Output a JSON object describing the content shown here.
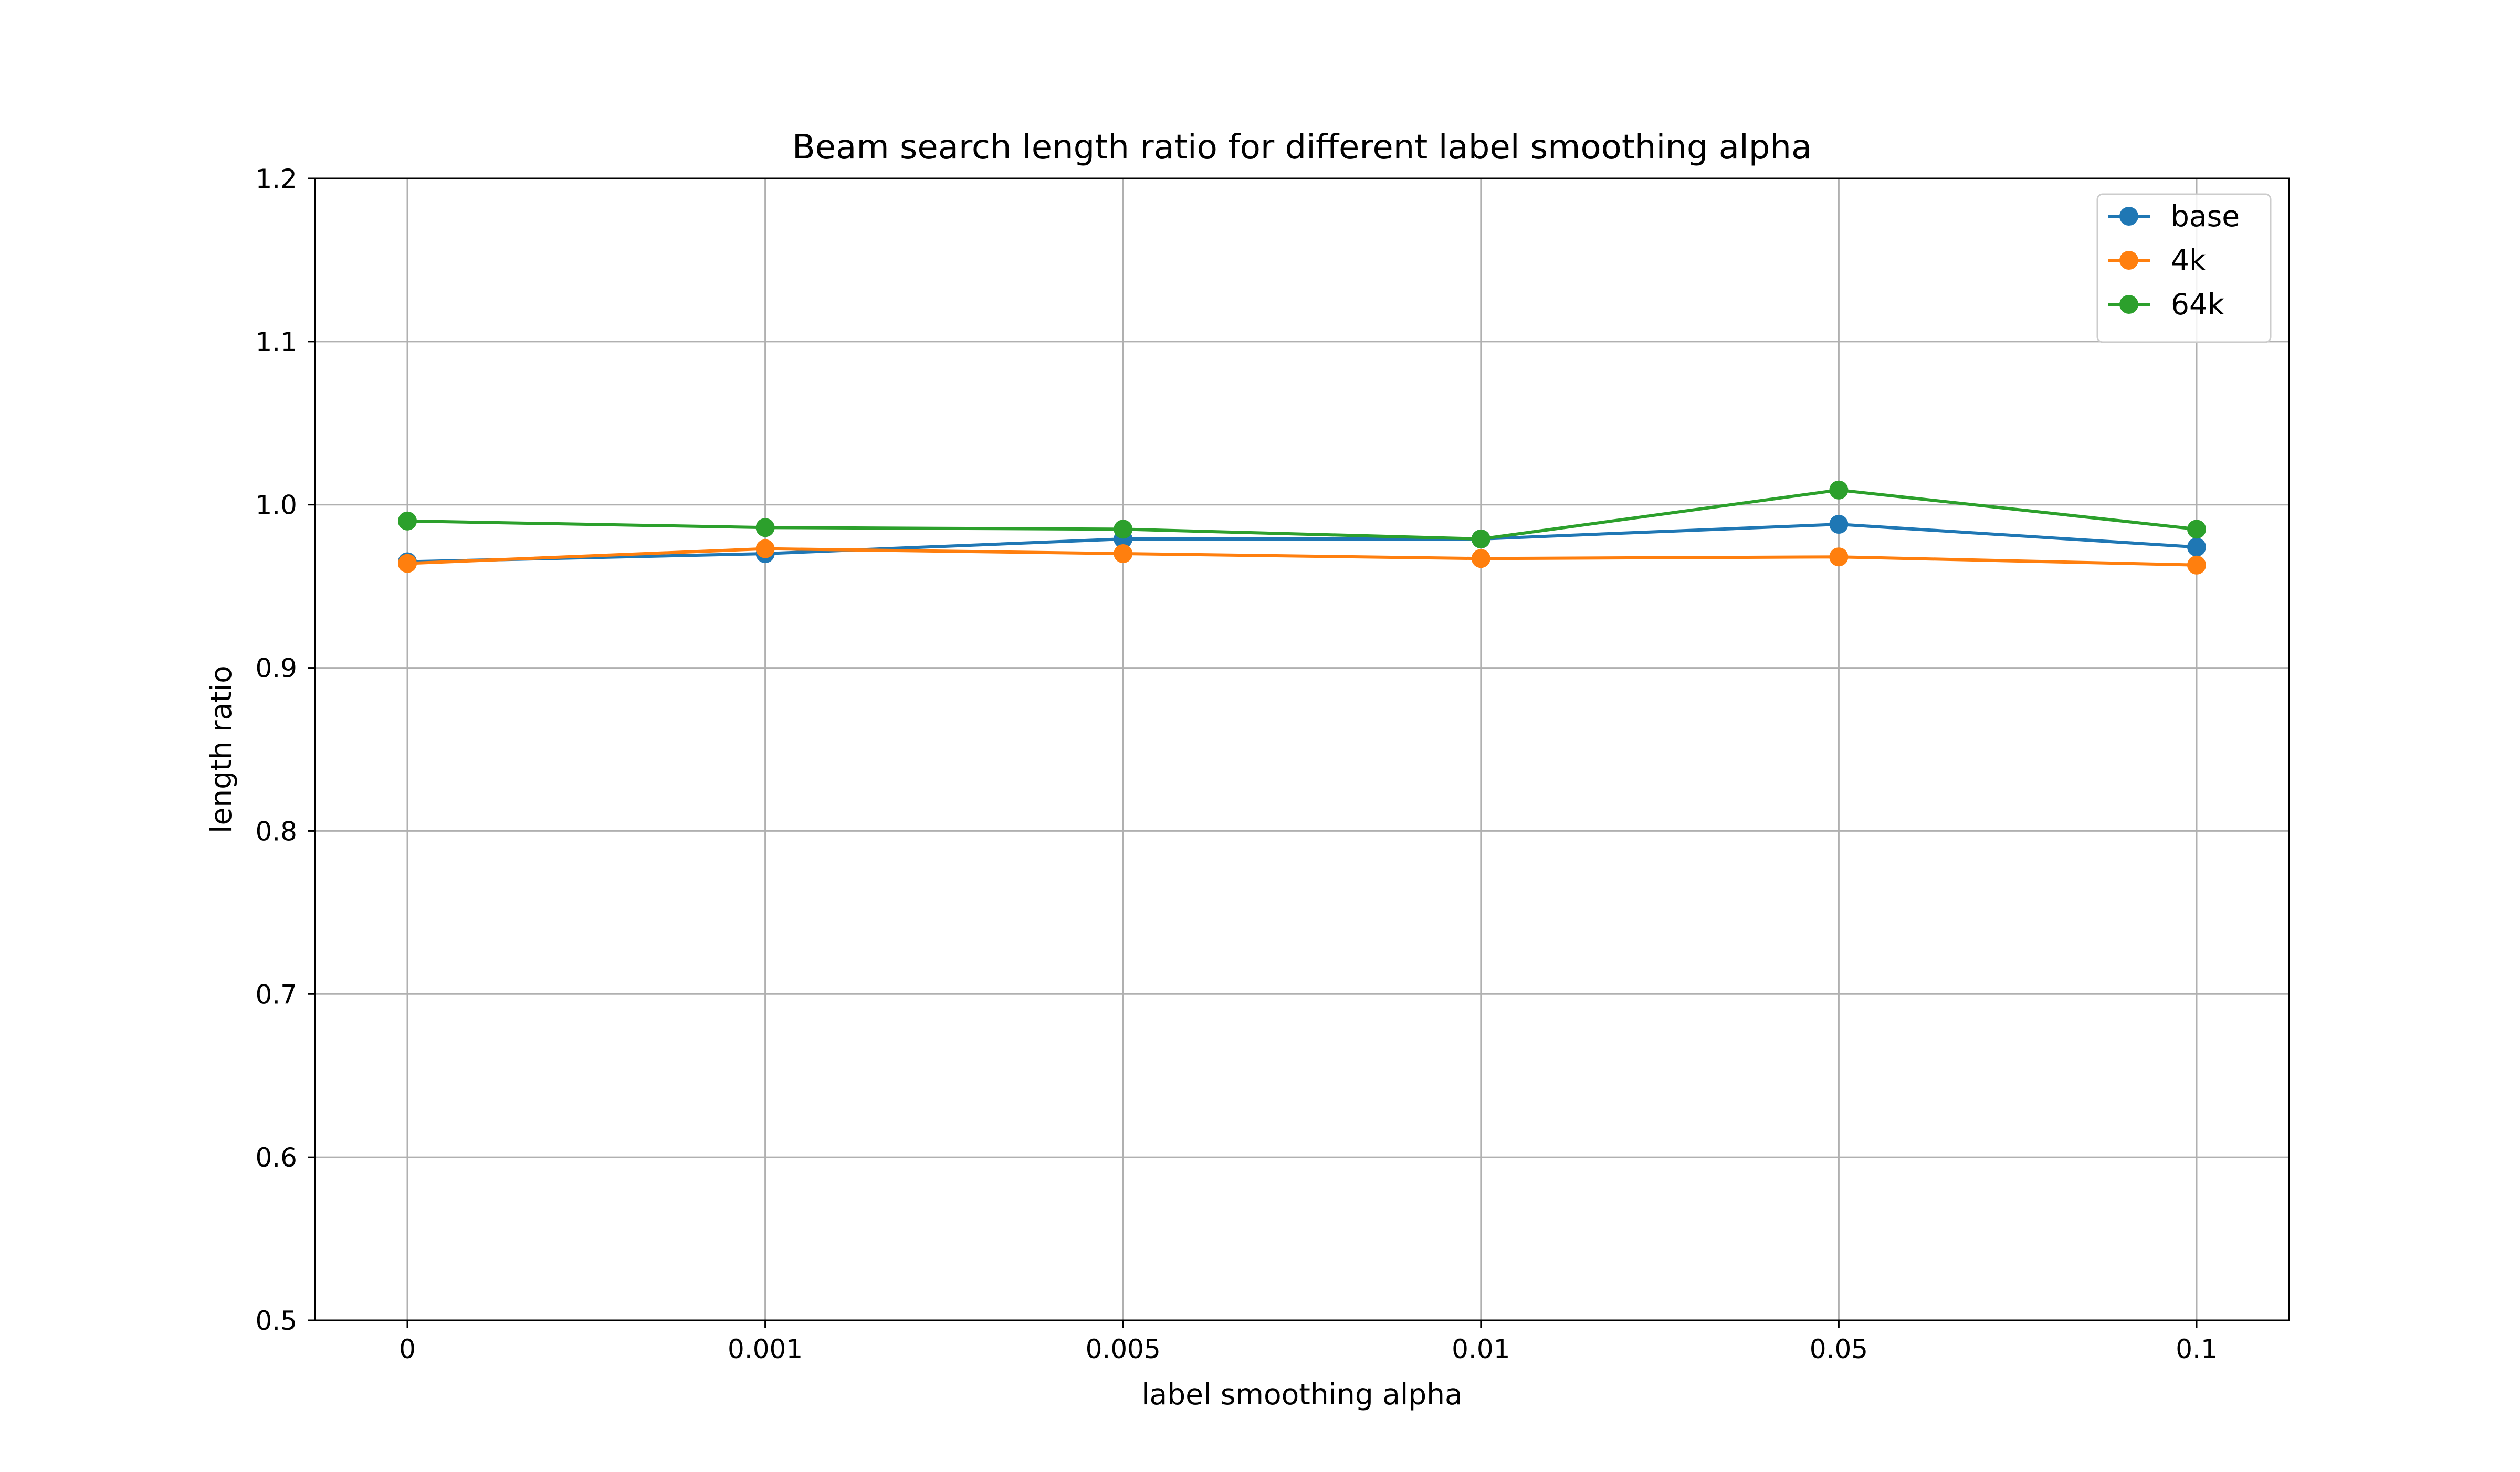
{
  "chart_data": {
    "type": "line",
    "title": "Beam search length ratio for different label smoothing alpha",
    "xlabel": "label smoothing alpha",
    "ylabel": "length ratio",
    "categories": [
      "0",
      "0.001",
      "0.005",
      "0.01",
      "0.05",
      "0.1"
    ],
    "ylim": [
      0.5,
      1.2
    ],
    "yticks": [
      "0.5",
      "0.6",
      "0.7",
      "0.8",
      "0.9",
      "1.0",
      "1.1",
      "1.2"
    ],
    "grid": true,
    "legend_position": "top-right",
    "series": [
      {
        "name": "base",
        "color": "#1f77b4",
        "values": [
          0.965,
          0.97,
          0.979,
          0.979,
          0.988,
          0.974
        ]
      },
      {
        "name": "4k",
        "color": "#ff7f0e",
        "values": [
          0.964,
          0.973,
          0.97,
          0.967,
          0.968,
          0.963
        ]
      },
      {
        "name": "64k",
        "color": "#2ca02c",
        "values": [
          0.99,
          0.986,
          0.985,
          0.979,
          1.009,
          0.985
        ]
      }
    ]
  }
}
